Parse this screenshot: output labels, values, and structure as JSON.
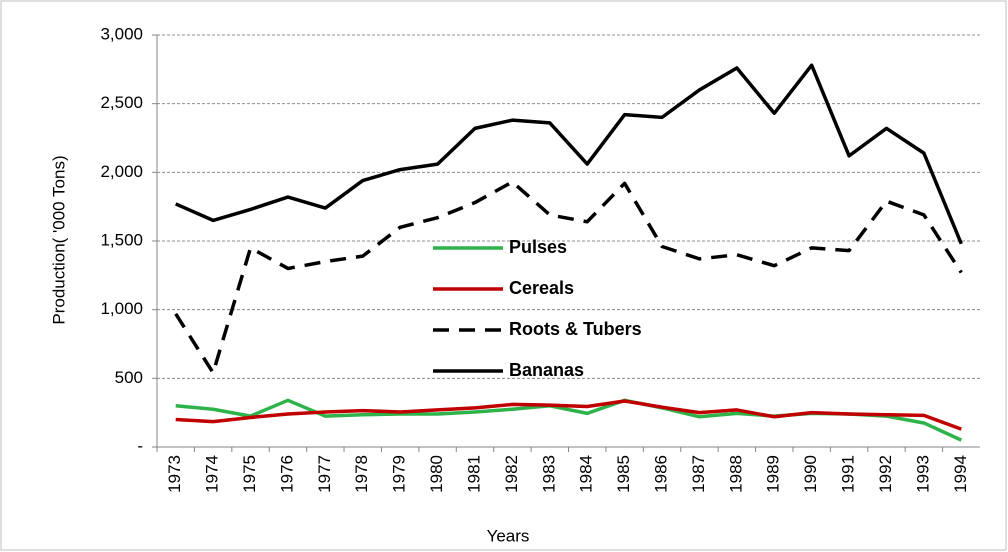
{
  "chart_data": {
    "type": "line",
    "x_label": "Years",
    "y_label": "Production( '000 Tons)",
    "categories": [
      "1973",
      "1974",
      "1975",
      "1976",
      "1977",
      "1978",
      "1979",
      "1980",
      "1981",
      "1982",
      "1983",
      "1984",
      "1985",
      "1986",
      "1987",
      "1988",
      "1989",
      "1990",
      "1991",
      "1992",
      "1993",
      "1994"
    ],
    "series": [
      {
        "name": "Pulses",
        "color": "#2eb34a",
        "style": "solid",
        "values": [
          300,
          275,
          225,
          340,
          225,
          235,
          240,
          240,
          255,
          275,
          300,
          245,
          340,
          285,
          220,
          245,
          225,
          245,
          240,
          225,
          175,
          50
        ]
      },
      {
        "name": "Cereals",
        "color": "#c00000",
        "style": "solid",
        "values": [
          200,
          185,
          215,
          240,
          255,
          265,
          255,
          270,
          285,
          310,
          305,
          295,
          335,
          290,
          250,
          270,
          220,
          250,
          240,
          235,
          230,
          130
        ]
      },
      {
        "name": "Roots & Tubers",
        "color": "#000000",
        "style": "dashed",
        "values": [
          970,
          540,
          1450,
          1300,
          1350,
          1390,
          1600,
          1670,
          1780,
          1930,
          1690,
          1640,
          1920,
          1460,
          1370,
          1400,
          1320,
          1450,
          1430,
          1790,
          1690,
          1270
        ]
      },
      {
        "name": "Bananas",
        "color": "#000000",
        "style": "solid",
        "values": [
          1770,
          1650,
          1730,
          1820,
          1740,
          1940,
          2020,
          2060,
          2320,
          2380,
          2360,
          2060,
          2420,
          2400,
          2600,
          2760,
          2430,
          2780,
          2120,
          2320,
          2140,
          1480
        ]
      }
    ],
    "ylim": [
      0,
      3000
    ],
    "yticks": [
      {
        "value": 0,
        "label": "-"
      },
      500,
      {
        "value": 1000,
        "label": "1,000"
      },
      {
        "value": 1500,
        "label": "1,500"
      },
      {
        "value": 2000,
        "label": "2,000"
      },
      {
        "value": 2500,
        "label": "2,500"
      },
      {
        "value": 3000,
        "label": "3,000"
      }
    ],
    "grid": true,
    "legend": "center"
  }
}
